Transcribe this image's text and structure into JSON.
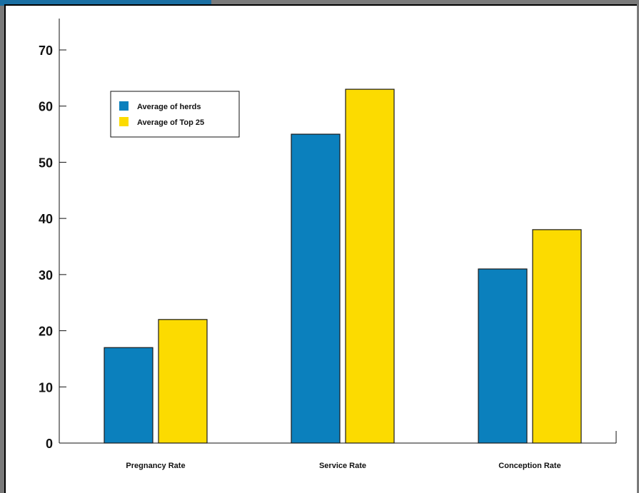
{
  "chart_data": {
    "type": "bar",
    "title": "",
    "xlabel": "",
    "ylabel": "",
    "categories": [
      "Pregnancy Rate",
      "Service Rate",
      "Conception Rate"
    ],
    "series": [
      {
        "name": "Average of herds",
        "values": [
          17,
          55,
          31
        ],
        "color": "#0b80bd"
      },
      {
        "name": "Average of Top 25",
        "values": [
          22,
          63,
          38
        ],
        "color": "#fcdb00"
      }
    ],
    "ylim": [
      0,
      70
    ],
    "yticks": [
      "0",
      "10",
      "20",
      "30",
      "40",
      "50",
      "60",
      "70"
    ],
    "grid": false,
    "legend_position": "top-left"
  },
  "colors": {
    "frame_band": "#1a6fa3",
    "page_bg": "#7a7a7a"
  }
}
